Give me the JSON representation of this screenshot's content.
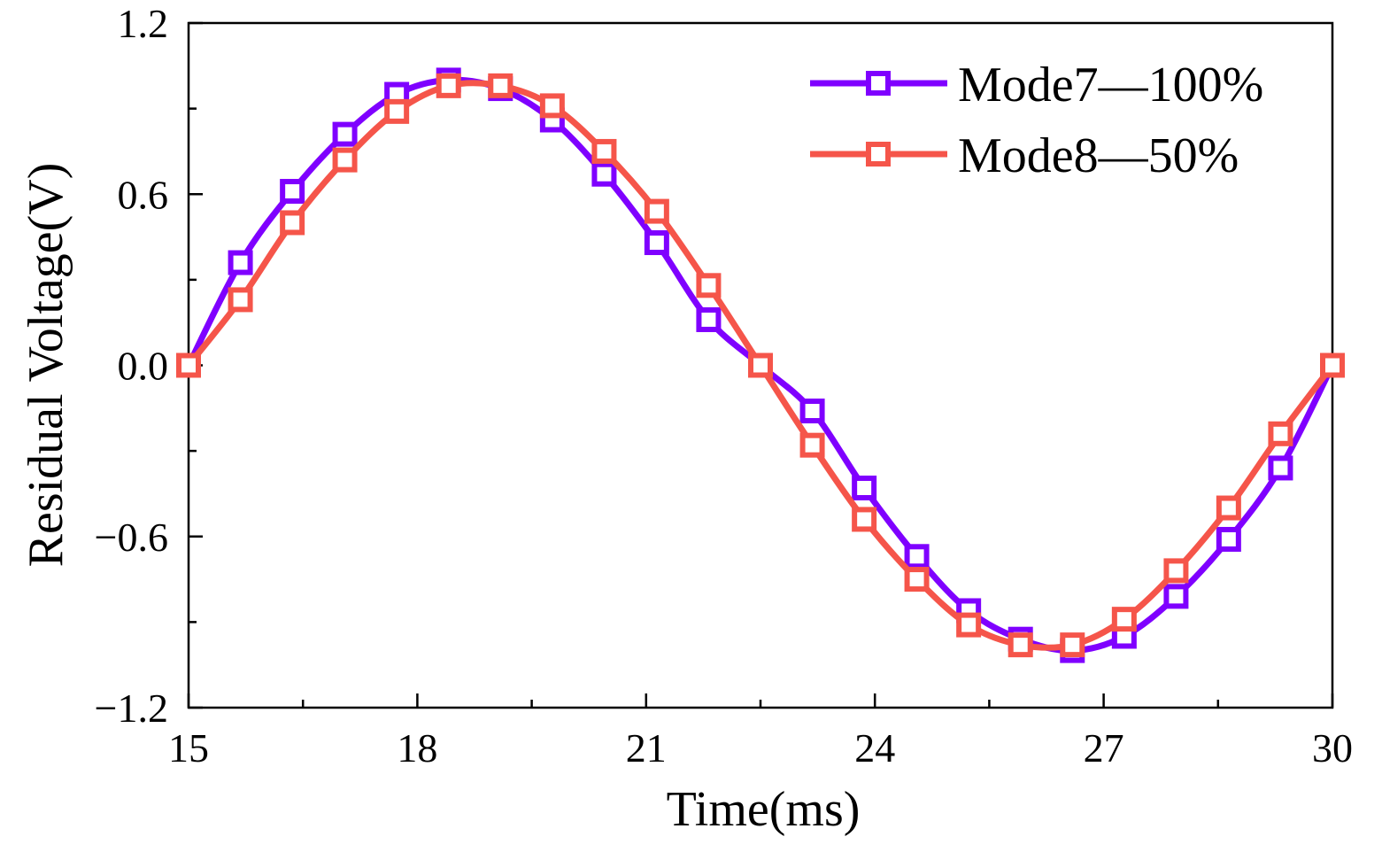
{
  "chart_data": {
    "type": "line",
    "title": "",
    "xlabel": "Time(ms)",
    "ylabel": "Residual Voltage(V)",
    "xlim": [
      15,
      30
    ],
    "ylim": [
      -1.2,
      1.2
    ],
    "xticks": [
      15,
      18,
      21,
      24,
      27,
      30
    ],
    "xtick_labels": [
      "15",
      "18",
      "21",
      "24",
      "27",
      "30"
    ],
    "yticks": [
      1.2,
      0.6,
      0.0,
      -0.6,
      -1.2
    ],
    "ytick_labels": [
      "1.2",
      "0.6",
      "0.0",
      "−0.6",
      "−1.2"
    ],
    "grid": false,
    "legend_position": "top-right",
    "series": [
      {
        "name": "Mode7—100%",
        "color": "#7f00ff",
        "marker": "square",
        "x": [
          15.0,
          15.68,
          16.36,
          17.05,
          17.73,
          18.41,
          19.09,
          19.77,
          20.45,
          21.14,
          21.82,
          22.5,
          23.18,
          23.86,
          24.55,
          25.23,
          25.91,
          26.59,
          27.27,
          27.95,
          28.64,
          29.32,
          30.0
        ],
        "values": [
          0.0,
          0.36,
          0.61,
          0.81,
          0.95,
          1.0,
          0.97,
          0.86,
          0.67,
          0.43,
          0.16,
          0.0,
          -0.16,
          -0.43,
          -0.67,
          -0.86,
          -0.96,
          -1.0,
          -0.95,
          -0.81,
          -0.61,
          -0.36,
          0.0
        ]
      },
      {
        "name": "Mode8—50%",
        "color": "#f5554a",
        "marker": "square",
        "x": [
          15.0,
          15.68,
          16.36,
          17.05,
          17.73,
          18.41,
          19.09,
          19.77,
          20.45,
          21.14,
          21.82,
          22.5,
          23.18,
          23.86,
          24.55,
          25.23,
          25.91,
          26.59,
          27.27,
          27.95,
          28.64,
          29.32,
          30.0
        ],
        "values": [
          0.0,
          0.23,
          0.5,
          0.72,
          0.89,
          0.98,
          0.98,
          0.91,
          0.75,
          0.54,
          0.28,
          0.0,
          -0.28,
          -0.54,
          -0.75,
          -0.91,
          -0.98,
          -0.98,
          -0.89,
          -0.72,
          -0.5,
          -0.24,
          0.0
        ]
      }
    ]
  }
}
